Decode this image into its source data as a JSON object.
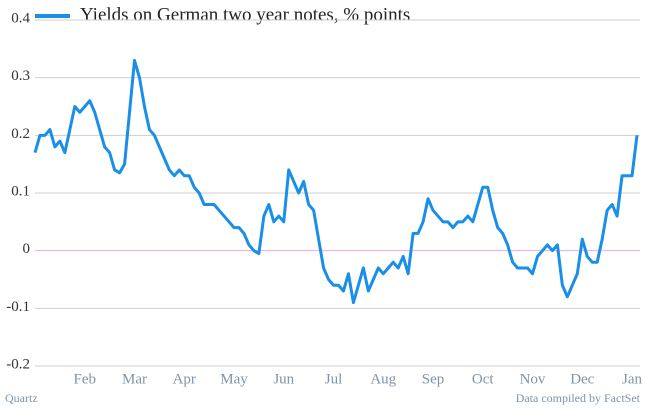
{
  "chart_data": {
    "type": "line",
    "categories": [
      null,
      null,
      null,
      null,
      null,
      null,
      null,
      null,
      null,
      null,
      "Feb",
      null,
      null,
      null,
      null,
      null,
      null,
      null,
      null,
      null,
      "Mar",
      null,
      null,
      null,
      null,
      null,
      null,
      null,
      null,
      null,
      "Apr",
      null,
      null,
      null,
      null,
      null,
      null,
      null,
      null,
      null,
      "May",
      null,
      null,
      null,
      null,
      null,
      null,
      null,
      null,
      null,
      "Jun",
      null,
      null,
      null,
      null,
      null,
      null,
      null,
      null,
      null,
      "Jul",
      null,
      null,
      null,
      null,
      null,
      null,
      null,
      null,
      null,
      "Aug",
      null,
      null,
      null,
      null,
      null,
      null,
      null,
      null,
      null,
      "Sep",
      null,
      null,
      null,
      null,
      null,
      null,
      null,
      null,
      null,
      "Oct",
      null,
      null,
      null,
      null,
      null,
      null,
      null,
      null,
      null,
      "Nov",
      null,
      null,
      null,
      null,
      null,
      null,
      null,
      null,
      null,
      "Dec",
      null,
      null,
      null,
      null,
      null,
      null,
      null,
      null,
      null,
      "Jan",
      null
    ],
    "series": [
      {
        "name": "Yields on German two year notes, % points",
        "color": "#1a8fe8",
        "values": [
          0.17,
          0.2,
          0.2,
          0.21,
          0.18,
          0.19,
          0.17,
          0.21,
          0.25,
          0.24,
          0.25,
          0.26,
          0.24,
          0.21,
          0.18,
          0.17,
          0.14,
          0.135,
          0.15,
          0.24,
          0.33,
          0.3,
          0.25,
          0.21,
          0.2,
          0.18,
          0.16,
          0.14,
          0.13,
          0.14,
          0.13,
          0.13,
          0.11,
          0.1,
          0.08,
          0.08,
          0.08,
          0.07,
          0.06,
          0.05,
          0.04,
          0.04,
          0.03,
          0.01,
          0.0,
          -0.005,
          0.06,
          0.08,
          0.05,
          0.06,
          0.05,
          0.14,
          0.12,
          0.1,
          0.12,
          0.08,
          0.07,
          0.02,
          -0.03,
          -0.05,
          -0.06,
          -0.06,
          -0.07,
          -0.04,
          -0.09,
          -0.06,
          -0.03,
          -0.07,
          -0.05,
          -0.03,
          -0.04,
          -0.03,
          -0.02,
          -0.03,
          -0.01,
          -0.04,
          0.03,
          0.03,
          0.05,
          0.09,
          0.07,
          0.06,
          0.05,
          0.05,
          0.04,
          0.05,
          0.05,
          0.06,
          0.05,
          0.08,
          0.11,
          0.11,
          0.07,
          0.04,
          0.03,
          0.01,
          -0.02,
          -0.03,
          -0.03,
          -0.03,
          -0.04,
          -0.01,
          0.0,
          0.01,
          0.0,
          0.01,
          -0.06,
          -0.08,
          -0.06,
          -0.04,
          0.02,
          -0.01,
          -0.02,
          -0.02,
          0.02,
          0.07,
          0.08,
          0.06,
          0.13,
          0.13,
          0.13,
          0.2
        ]
      }
    ],
    "ylim": [
      -0.2,
      0.4
    ],
    "yticks": [
      0.4,
      0.3,
      0.2,
      0.1,
      0,
      -0.1,
      -0.2
    ],
    "grid": true,
    "zero_line_color": "#f0a6e6",
    "source_left": "Quartz",
    "source_right": "Data compiled by FactSet"
  }
}
